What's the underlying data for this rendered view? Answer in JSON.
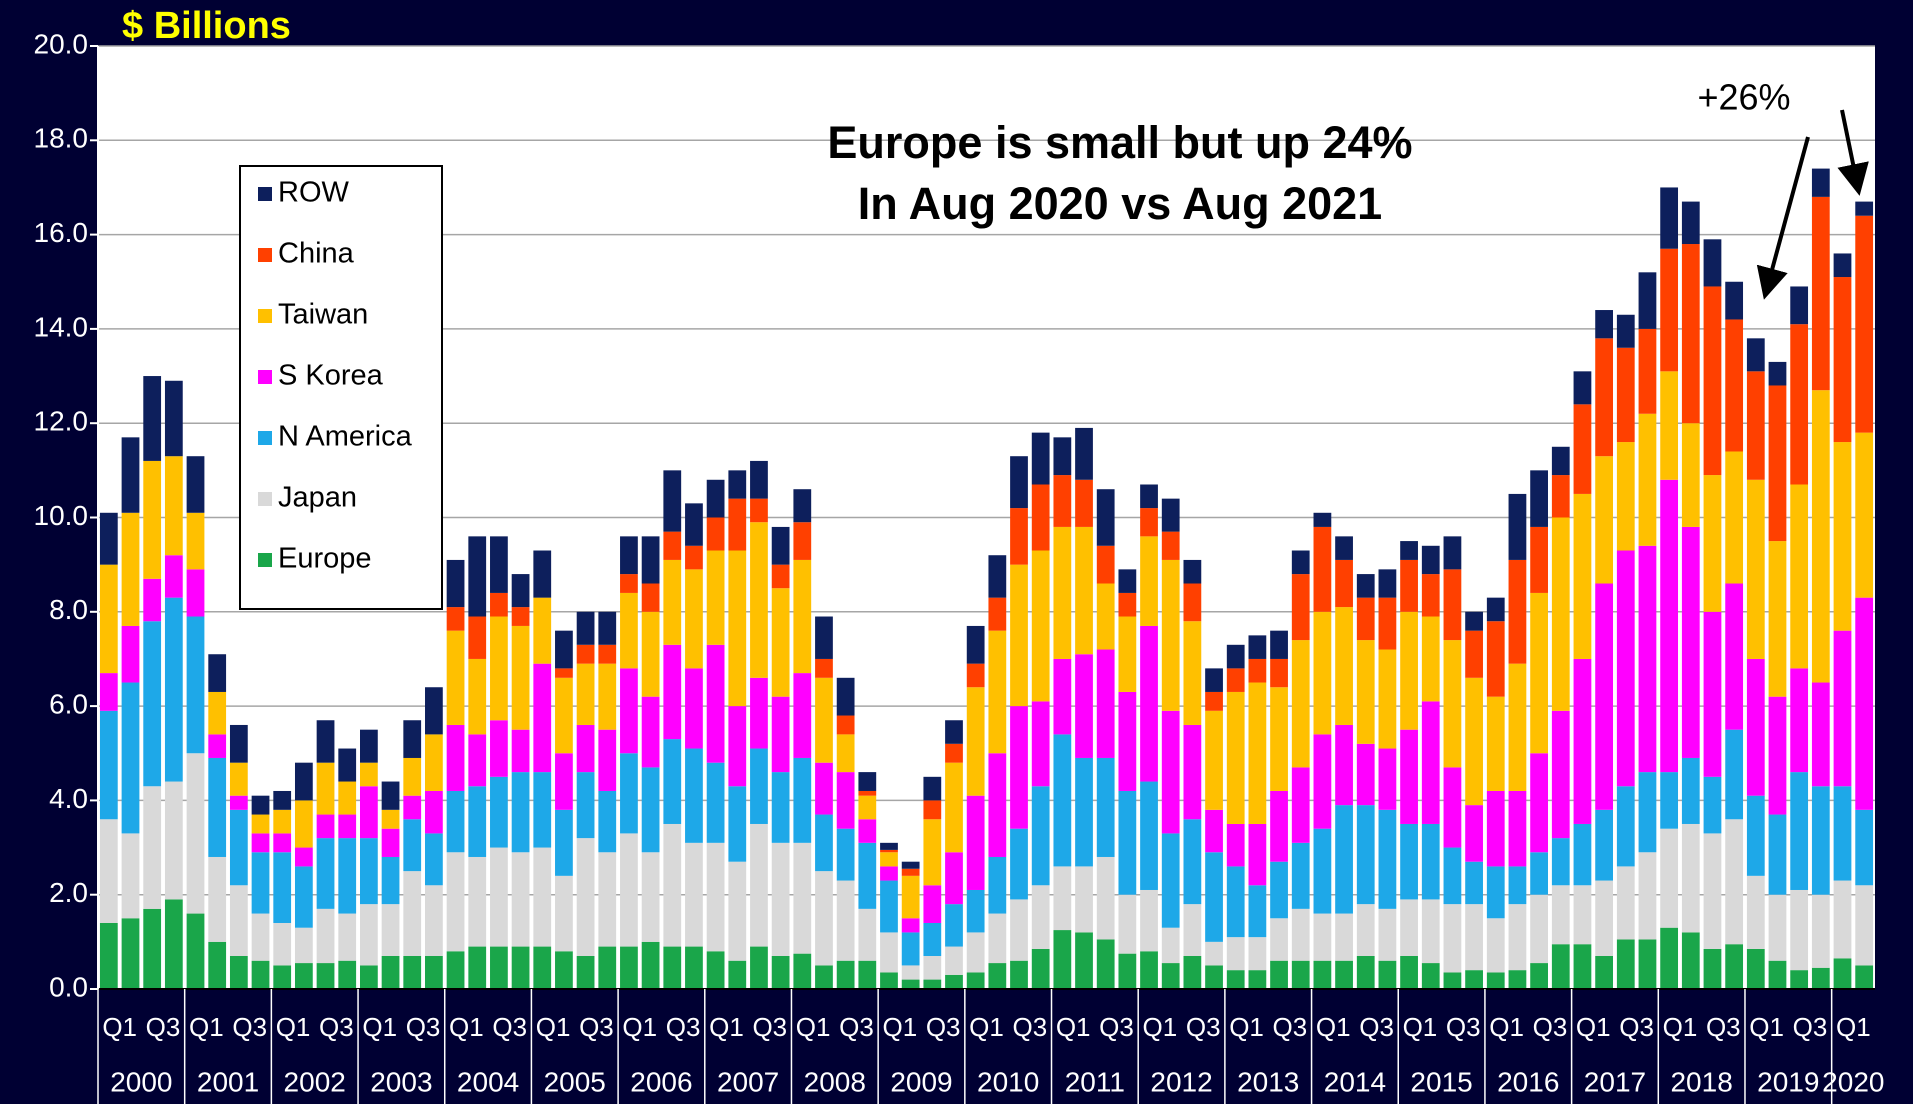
{
  "chart_data": {
    "type": "bar",
    "stacked": true,
    "y_label": "$ Billions",
    "annotation_lines": [
      "Europe is small but up 24%",
      "In Aug 2020 vs Aug 2021"
    ],
    "callout": "+26%",
    "legend": "upper left",
    "grid": true,
    "ylim": [
      0,
      20
    ],
    "yticks": [
      {
        "value": 0,
        "label": "0.0"
      },
      {
        "value": 2,
        "label": "2.0"
      },
      {
        "value": 4,
        "label": "4.0"
      },
      {
        "value": 6,
        "label": "6.0"
      },
      {
        "value": 8,
        "label": "8.0"
      },
      {
        "value": 10,
        "label": "10.0"
      },
      {
        "value": 12,
        "label": "12.0"
      },
      {
        "value": 14,
        "label": "14.0"
      },
      {
        "value": 16,
        "label": "16.0"
      },
      {
        "value": 18,
        "label": "18.0"
      },
      {
        "value": 20,
        "label": "20.0"
      }
    ],
    "year_labels": [
      "2000",
      "2001",
      "2002",
      "2003",
      "2004",
      "2005",
      "2006",
      "2007",
      "2008",
      "2009",
      "2010",
      "2011",
      "2012",
      "2013",
      "2014",
      "2015",
      "2016",
      "2017",
      "2018",
      "2019",
      "2020"
    ],
    "categories": [
      "Q1",
      null,
      "Q3",
      null,
      "Q1",
      null,
      "Q3",
      null,
      "Q1",
      null,
      "Q3",
      null,
      "Q1",
      null,
      "Q3",
      null,
      "Q1",
      null,
      "Q3",
      null,
      "Q1",
      null,
      "Q3",
      null,
      "Q1",
      null,
      "Q3",
      null,
      "Q1",
      null,
      "Q3",
      null,
      "Q1",
      null,
      "Q3",
      null,
      "Q1",
      null,
      "Q3",
      null,
      "Q1",
      null,
      "Q3",
      null,
      "Q1",
      null,
      "Q3",
      null,
      "Q1",
      null,
      "Q3",
      null,
      "Q1",
      null,
      "Q3",
      null,
      "Q1",
      null,
      "Q3",
      null,
      "Q1",
      null,
      "Q3",
      null,
      "Q1",
      null,
      "Q3",
      null,
      "Q1",
      null,
      "Q3",
      null,
      "Q1",
      null,
      "Q3",
      null,
      "Q1",
      null,
      "Q3",
      null,
      "Q1",
      null
    ],
    "series": [
      {
        "name": "Europe",
        "color": "#1aa64a",
        "values": [
          1.4,
          1.5,
          1.7,
          1.9,
          1.6,
          1.0,
          0.7,
          0.6,
          0.5,
          0.55,
          0.55,
          0.6,
          0.5,
          0.7,
          0.7,
          0.7,
          0.8,
          0.9,
          0.9,
          0.9,
          0.9,
          0.8,
          0.7,
          0.9,
          0.9,
          1.0,
          0.9,
          0.9,
          0.8,
          0.6,
          0.9,
          0.7,
          0.75,
          0.5,
          0.6,
          0.6,
          0.35,
          0.2,
          0.2,
          0.3,
          0.35,
          0.55,
          0.6,
          0.85,
          1.25,
          1.2,
          1.05,
          0.75,
          0.8,
          0.55,
          0.7,
          0.5,
          0.4,
          0.4,
          0.6,
          0.6,
          0.6,
          0.6,
          0.7,
          0.6,
          0.7,
          0.55,
          0.35,
          0.4,
          0.35,
          0.4,
          0.55,
          0.95,
          0.95,
          0.7,
          1.05,
          1.05,
          1.3,
          1.2,
          0.85,
          0.95,
          0.85,
          0.6,
          0.4,
          0.45,
          0.65,
          0.5
        ]
      },
      {
        "name": "Japan",
        "color": "#d9d9d9",
        "values": [
          2.2,
          1.8,
          2.6,
          2.5,
          3.4,
          1.8,
          1.5,
          1.0,
          0.9,
          0.75,
          1.15,
          1.0,
          1.3,
          1.1,
          1.8,
          1.5,
          2.1,
          1.9,
          2.1,
          2.0,
          2.1,
          1.6,
          2.5,
          2.0,
          2.4,
          1.9,
          2.6,
          2.2,
          2.3,
          2.1,
          2.6,
          2.4,
          2.35,
          2.0,
          1.7,
          1.1,
          0.85,
          0.3,
          0.5,
          0.6,
          0.85,
          1.05,
          1.3,
          1.35,
          1.35,
          1.4,
          1.75,
          1.25,
          1.3,
          0.75,
          1.1,
          0.5,
          0.7,
          0.7,
          0.9,
          1.1,
          1.0,
          1.0,
          1.1,
          1.1,
          1.2,
          1.35,
          1.45,
          1.4,
          1.15,
          1.4,
          1.45,
          1.25,
          1.25,
          1.6,
          1.55,
          1.85,
          2.1,
          2.3,
          2.45,
          2.65,
          1.55,
          1.4,
          1.7,
          1.55,
          1.65,
          1.7
        ]
      },
      {
        "name": "N America",
        "color": "#1ea8e8",
        "values": [
          2.3,
          3.2,
          3.5,
          3.9,
          2.9,
          2.1,
          1.6,
          1.3,
          1.5,
          1.3,
          1.5,
          1.6,
          1.4,
          1.0,
          1.1,
          1.1,
          1.3,
          1.5,
          1.5,
          1.7,
          1.6,
          1.4,
          1.4,
          1.3,
          1.7,
          1.8,
          1.8,
          2.0,
          1.7,
          1.6,
          1.6,
          1.5,
          1.8,
          1.2,
          1.1,
          1.4,
          1.1,
          0.7,
          0.7,
          0.9,
          0.9,
          1.2,
          1.5,
          2.1,
          2.8,
          2.3,
          2.1,
          2.2,
          2.3,
          2.0,
          1.8,
          1.9,
          1.5,
          1.1,
          1.2,
          1.4,
          1.8,
          2.3,
          2.1,
          2.1,
          1.6,
          1.6,
          1.2,
          0.9,
          1.1,
          0.8,
          0.9,
          1.0,
          1.3,
          1.5,
          1.7,
          1.7,
          1.2,
          1.4,
          1.2,
          1.9,
          1.7,
          1.7,
          2.5,
          2.3,
          2.0,
          1.6
        ]
      },
      {
        "name": "S Korea",
        "color": "#ff00ff",
        "values": [
          0.8,
          1.2,
          0.9,
          0.9,
          1.0,
          0.5,
          0.3,
          0.4,
          0.4,
          0.4,
          0.5,
          0.5,
          1.1,
          0.6,
          0.5,
          0.9,
          1.4,
          1.1,
          1.2,
          0.9,
          2.3,
          1.2,
          1.0,
          1.3,
          1.8,
          1.5,
          2.0,
          1.7,
          2.5,
          1.7,
          1.5,
          1.6,
          1.8,
          1.1,
          1.2,
          0.5,
          0.3,
          0.3,
          0.8,
          1.1,
          2.0,
          2.2,
          2.6,
          1.8,
          1.6,
          2.2,
          2.3,
          2.1,
          3.3,
          2.6,
          2.0,
          0.9,
          0.9,
          1.3,
          1.5,
          1.6,
          2.0,
          1.7,
          1.3,
          1.3,
          2.0,
          2.6,
          1.7,
          1.2,
          1.6,
          1.6,
          2.1,
          2.7,
          3.5,
          4.8,
          5.0,
          4.8,
          6.2,
          4.9,
          3.5,
          3.1,
          2.9,
          2.5,
          2.2,
          2.2,
          3.3,
          4.5
        ]
      },
      {
        "name": "Taiwan",
        "color": "#ffc000",
        "values": [
          2.3,
          2.4,
          2.5,
          2.1,
          1.2,
          0.9,
          0.7,
          0.4,
          0.5,
          1.0,
          1.1,
          0.7,
          0.5,
          0.4,
          0.8,
          1.2,
          2.0,
          1.6,
          2.2,
          2.2,
          1.4,
          1.6,
          1.3,
          1.4,
          1.6,
          1.8,
          1.8,
          2.1,
          2.0,
          3.3,
          3.3,
          2.3,
          2.4,
          1.8,
          0.8,
          0.5,
          0.3,
          0.9,
          1.4,
          1.9,
          2.3,
          2.6,
          3.0,
          3.2,
          2.8,
          2.7,
          1.4,
          1.6,
          1.9,
          3.2,
          2.2,
          2.1,
          2.8,
          3.0,
          2.2,
          2.7,
          2.6,
          2.5,
          2.2,
          2.1,
          2.5,
          1.8,
          2.7,
          2.7,
          2.0,
          2.7,
          3.4,
          4.1,
          3.5,
          2.7,
          2.3,
          2.8,
          2.3,
          2.2,
          2.9,
          2.8,
          3.8,
          3.3,
          3.9,
          6.2,
          4.0,
          3.5
        ]
      },
      {
        "name": "China",
        "color": "#ff4000",
        "values": [
          0,
          0,
          0,
          0,
          0,
          0,
          0,
          0,
          0,
          0,
          0,
          0,
          0,
          0,
          0,
          0,
          0.5,
          0.9,
          0.5,
          0.4,
          0,
          0.2,
          0.4,
          0.4,
          0.4,
          0.6,
          0.6,
          0.5,
          0.7,
          1.1,
          0.5,
          0.5,
          0.8,
          0.4,
          0.4,
          0.1,
          0.05,
          0.15,
          0.4,
          0.4,
          0.5,
          0.7,
          1.2,
          1.4,
          1.1,
          1.0,
          0.8,
          0.5,
          0.6,
          0.6,
          0.8,
          0.4,
          0.5,
          0.5,
          0.6,
          1.4,
          1.8,
          1.0,
          0.9,
          1.1,
          1.1,
          0.9,
          1.5,
          1.0,
          1.6,
          2.2,
          1.4,
          0.9,
          1.9,
          2.5,
          2.0,
          1.8,
          2.6,
          3.8,
          4.0,
          2.8,
          2.3,
          3.3,
          3.4,
          4.1,
          3.5,
          4.6
        ]
      },
      {
        "name": "ROW",
        "color": "#0d1f5c",
        "values": [
          1.1,
          1.6,
          1.8,
          1.6,
          1.2,
          0.8,
          0.8,
          0.4,
          0.4,
          0.8,
          0.9,
          0.7,
          0.7,
          0.6,
          0.8,
          1.0,
          1.0,
          1.7,
          1.2,
          0.7,
          1.0,
          0.8,
          0.7,
          0.7,
          0.8,
          1.0,
          1.3,
          0.9,
          0.8,
          0.6,
          0.8,
          0.8,
          0.7,
          0.9,
          0.8,
          0.4,
          0.15,
          0.15,
          0.5,
          0.5,
          0.8,
          0.9,
          1.1,
          1.1,
          0.8,
          1.1,
          1.2,
          0.5,
          0.5,
          0.7,
          0.5,
          0.5,
          0.5,
          0.5,
          0.6,
          0.5,
          0.3,
          0.5,
          0.5,
          0.6,
          0.4,
          0.6,
          0.7,
          0.4,
          0.5,
          1.4,
          1.2,
          0.6,
          0.7,
          0.6,
          0.7,
          1.2,
          1.3,
          0.9,
          1.0,
          0.8,
          0.7,
          0.5,
          0.8,
          0.6,
          0.5,
          0.3
        ]
      }
    ]
  }
}
